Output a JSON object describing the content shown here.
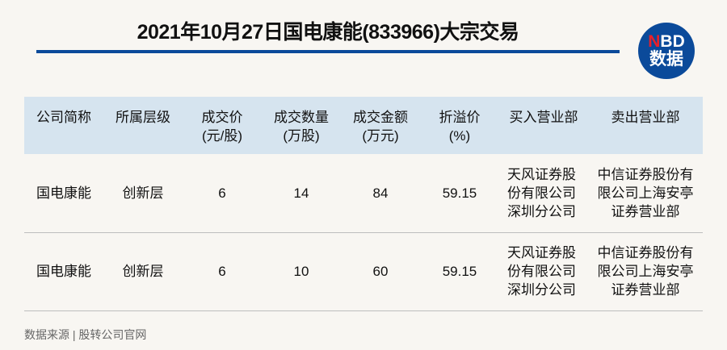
{
  "title": "2021年10月27日国电康能(833966)大宗交易",
  "logo": {
    "n": "N",
    "bd": "BD",
    "line2": "数据"
  },
  "colors": {
    "accent": "#0b4a9a",
    "header_bg": "#d6e4ef",
    "logo_red": "#e8202a"
  },
  "table": {
    "headers": [
      [
        "公司简称",
        ""
      ],
      [
        "所属层级",
        ""
      ],
      [
        "成交价",
        "(元/股)"
      ],
      [
        "成交数量",
        "(万股)"
      ],
      [
        "成交金额",
        "(万元)"
      ],
      [
        "折溢价",
        "(%)"
      ],
      [
        "买入营业部",
        ""
      ],
      [
        "卖出营业部",
        ""
      ]
    ],
    "rows": [
      {
        "name": "国电康能",
        "tier": "创新层",
        "price": "6",
        "qty": "14",
        "amount": "84",
        "premium": "59.15",
        "buy": [
          "天风证券股",
          "份有限公司",
          "深圳分公司"
        ],
        "sell": [
          "中信证券股份有",
          "限公司上海安亭",
          "证券营业部"
        ]
      },
      {
        "name": "国电康能",
        "tier": "创新层",
        "price": "6",
        "qty": "10",
        "amount": "60",
        "premium": "59.15",
        "buy": [
          "天风证券股",
          "份有限公司",
          "深圳分公司"
        ],
        "sell": [
          "中信证券股份有",
          "限公司上海安亭",
          "证券营业部"
        ]
      }
    ]
  },
  "source": "数据来源 | 股转公司官网"
}
